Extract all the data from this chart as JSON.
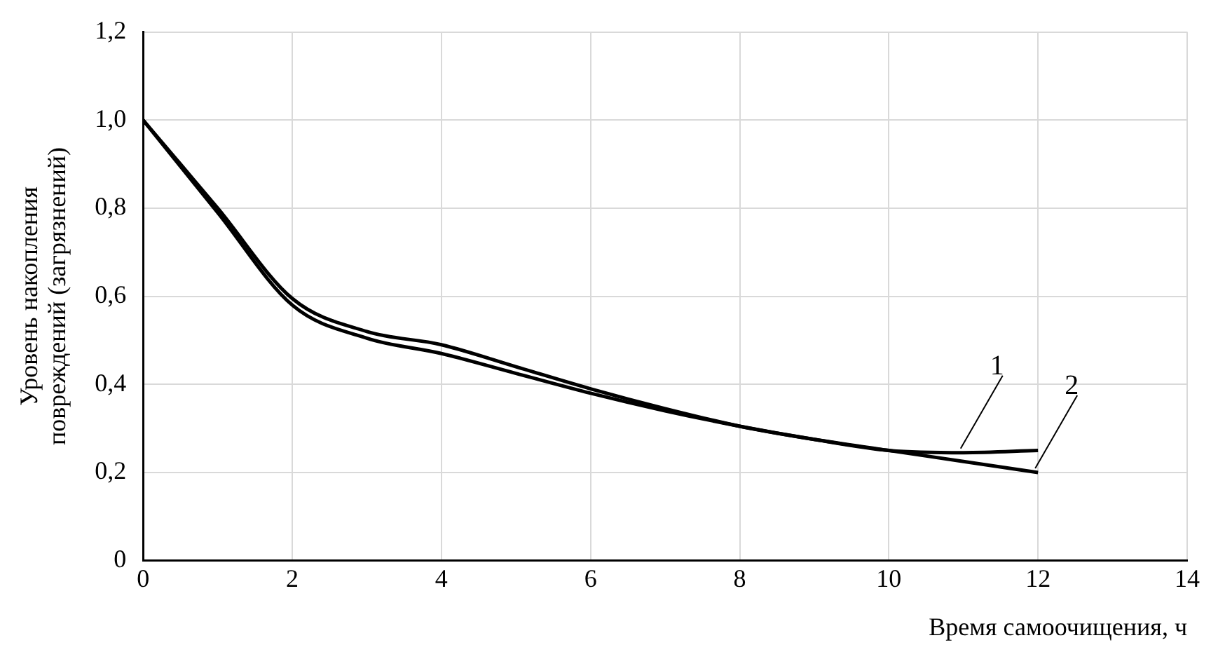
{
  "chart_data": {
    "type": "line",
    "xlabel": "Время самоочищения, ч",
    "ylabel": "Уровень накопления повреждений (загрязнений)",
    "x": [
      0,
      1,
      2,
      3,
      4,
      5,
      6,
      7,
      8,
      9,
      10,
      11,
      12
    ],
    "series": [
      {
        "name": "1",
        "color": "#000000",
        "values": [
          1.0,
          0.8,
          0.595,
          0.52,
          0.49,
          0.44,
          0.39,
          0.345,
          0.305,
          0.275,
          0.25,
          0.245,
          0.25
        ]
      },
      {
        "name": "2",
        "color": "#000000",
        "values": [
          1.0,
          0.79,
          0.58,
          0.505,
          0.47,
          0.425,
          0.38,
          0.34,
          0.305,
          0.275,
          0.25,
          0.225,
          0.2
        ]
      }
    ],
    "xlim": [
      0,
      14
    ],
    "xticks": [
      0,
      2,
      4,
      6,
      8,
      10,
      12,
      14
    ],
    "ylim": [
      0,
      1.2
    ],
    "yticks": [
      0,
      {
        "value": 0.2,
        "label": "0,2"
      },
      {
        "value": 0.4,
        "label": "0,4"
      },
      {
        "value": 0.6,
        "label": "0,6"
      },
      {
        "value": 0.8,
        "label": "0,8"
      },
      {
        "value": 1.0,
        "label": "1,0"
      },
      {
        "value": 1.2,
        "label": "1,2"
      }
    ],
    "grid": true,
    "marker": "none",
    "line_style": "solid",
    "legend": false
  }
}
